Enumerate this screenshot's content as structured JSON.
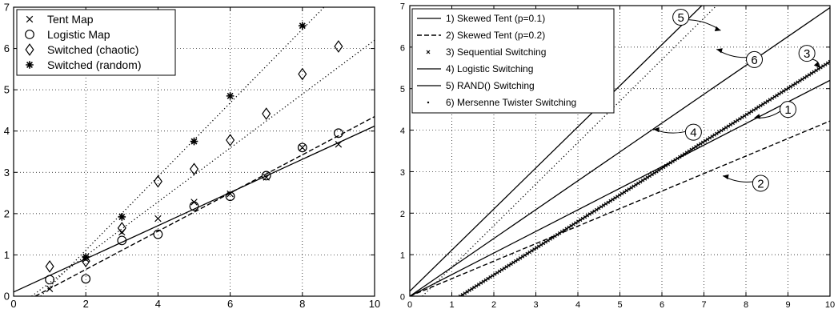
{
  "chart_data": [
    {
      "type": "scatter",
      "title": "",
      "xlabel": "",
      "ylabel": "",
      "xlim": [
        0,
        10
      ],
      "ylim": [
        0,
        7
      ],
      "xticks": [
        0,
        2,
        4,
        6,
        8,
        10
      ],
      "yticks": [
        0,
        1,
        2,
        3,
        4,
        5,
        6,
        7
      ],
      "grid": true,
      "legend_position": "top-left",
      "series": [
        {
          "name": "Tent Map",
          "marker": "x",
          "x": [
            1,
            2,
            3,
            4,
            5,
            6,
            7,
            8,
            9
          ],
          "y": [
            0.18,
            0.9,
            1.55,
            1.88,
            2.28,
            2.48,
            2.88,
            3.6,
            3.68
          ]
        },
        {
          "name": "Logistic Map",
          "marker": "circle",
          "x": [
            1,
            2,
            3,
            4,
            5,
            6,
            7,
            8,
            9
          ],
          "y": [
            0.4,
            0.42,
            1.35,
            1.5,
            2.18,
            2.42,
            2.92,
            3.6,
            3.95
          ]
        },
        {
          "name": "Switched (chaotic)",
          "marker": "diamond",
          "x": [
            1,
            2,
            3,
            4,
            5,
            6,
            7,
            8,
            9
          ],
          "y": [
            0.72,
            0.85,
            1.65,
            2.78,
            3.08,
            3.78,
            4.42,
            5.38,
            6.05
          ]
        },
        {
          "name": "Switched (random)",
          "marker": "star",
          "x": [
            2,
            3,
            5,
            6,
            8
          ],
          "y": [
            0.95,
            1.92,
            3.75,
            4.85,
            6.55
          ]
        }
      ],
      "fit_lines": [
        {
          "style": "solid",
          "x": [
            0,
            10
          ],
          "y": [
            0.1,
            4.12
          ]
        },
        {
          "style": "dashed",
          "x": [
            0.6,
            10
          ],
          "y": [
            0,
            4.35
          ]
        },
        {
          "style": "dotted",
          "x": [
            0.5,
            10
          ],
          "y": [
            0,
            6.2
          ]
        },
        {
          "style": "dotted",
          "x": [
            0.75,
            8.6
          ],
          "y": [
            0,
            7
          ]
        }
      ]
    },
    {
      "type": "line",
      "title": "",
      "xlabel": "",
      "ylabel": "",
      "xlim": [
        0,
        10
      ],
      "ylim": [
        0,
        7
      ],
      "xticks": [
        0,
        1,
        2,
        3,
        4,
        5,
        6,
        7,
        8,
        9,
        10
      ],
      "yticks": [
        0,
        1,
        2,
        3,
        4,
        5,
        6,
        7
      ],
      "grid": true,
      "legend_position": "top-left",
      "series": [
        {
          "name": "1) Skewed Tent (p=0.1)",
          "style": "solid",
          "x": [
            0,
            10
          ],
          "y": [
            0,
            5.2
          ]
        },
        {
          "name": "2) Skewed Tent (p=0.2)",
          "style": "dashed",
          "x": [
            0,
            10
          ],
          "y": [
            0,
            4.22
          ]
        },
        {
          "name": "3) Sequential Switching",
          "style": "x-markers",
          "x": [
            1.2,
            10
          ],
          "y": [
            0,
            5.65
          ]
        },
        {
          "name": "4) Logistic Switching",
          "style": "solid",
          "x": [
            0,
            10
          ],
          "y": [
            0,
            6.95
          ]
        },
        {
          "name": "5) RAND() Switching",
          "style": "solid",
          "x": [
            0,
            6.95
          ],
          "y": [
            0.12,
            7
          ]
        },
        {
          "name": "6) Mersenne Twister Switching",
          "style": "dotted",
          "x": [
            0.3,
            7.3
          ],
          "y": [
            0,
            7
          ]
        }
      ],
      "annotations": [
        {
          "label": "1",
          "x": 9.0,
          "y": 4.5,
          "target_x": 8.2,
          "target_y": 4.3
        },
        {
          "label": "2",
          "x": 8.35,
          "y": 2.72,
          "target_x": 7.45,
          "target_y": 2.9
        },
        {
          "label": "3",
          "x": 9.45,
          "y": 5.85,
          "target_x": 9.75,
          "target_y": 5.5
        },
        {
          "label": "4",
          "x": 6.75,
          "y": 3.95,
          "target_x": 5.8,
          "target_y": 4.02
        },
        {
          "label": "5",
          "x": 6.45,
          "y": 6.72,
          "target_x": 7.4,
          "target_y": 6.4
        },
        {
          "label": "6",
          "x": 8.2,
          "y": 5.7,
          "target_x": 7.3,
          "target_y": 5.95
        }
      ]
    }
  ]
}
